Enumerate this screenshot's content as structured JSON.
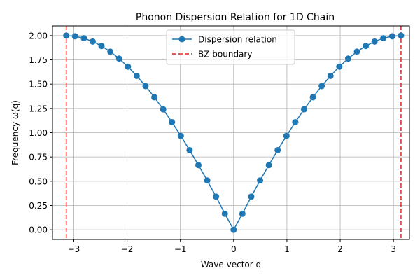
{
  "chart_data": {
    "type": "line",
    "title": "Phonon Dispersion Relation for 1D Chain",
    "xlabel": "Wave vector q",
    "ylabel": "Frequency ω(q)",
    "xlim": [
      -3.4,
      3.3
    ],
    "ylim": [
      -0.1,
      2.1
    ],
    "xticks": [
      -3,
      -2,
      -1,
      0,
      1,
      2,
      3
    ],
    "xtick_labels": [
      "−3",
      "−2",
      "−1",
      "0",
      "1",
      "2",
      "3"
    ],
    "yticks": [
      0.0,
      0.25,
      0.5,
      0.75,
      1.0,
      1.25,
      1.5,
      1.75,
      2.0
    ],
    "ytick_labels": [
      "0.00",
      "0.25",
      "0.50",
      "0.75",
      "1.00",
      "1.25",
      "1.50",
      "1.75",
      "2.00"
    ],
    "grid": true,
    "legend_position": "upper center",
    "series": [
      {
        "name": "Dispersion relation",
        "color": "#1f77b4",
        "marker": "circle",
        "linestyle": "solid",
        "x": [
          -3.1416,
          -2.9762,
          -2.8108,
          -2.6455,
          -2.4801,
          -2.3147,
          -2.1494,
          -1.984,
          -1.8186,
          -1.6533,
          -1.4879,
          -1.3225,
          -1.1572,
          -0.9918,
          -0.8264,
          -0.6611,
          -0.4957,
          -0.3303,
          -0.165,
          0.0,
          0.165,
          0.3303,
          0.4957,
          0.6611,
          0.8264,
          0.9918,
          1.1572,
          1.3225,
          1.4879,
          1.6533,
          1.8186,
          1.984,
          2.1494,
          2.3147,
          2.4801,
          2.6455,
          2.8108,
          2.9762,
          3.1416
        ],
        "y": [
          2.0,
          1.993,
          1.973,
          1.939,
          1.893,
          1.834,
          1.763,
          1.68,
          1.585,
          1.48,
          1.365,
          1.241,
          1.108,
          0.967,
          0.82,
          0.666,
          0.508,
          0.341,
          0.165,
          0.0,
          0.165,
          0.341,
          0.508,
          0.666,
          0.82,
          0.967,
          1.108,
          1.241,
          1.365,
          1.48,
          1.585,
          1.68,
          1.763,
          1.834,
          1.893,
          1.939,
          1.973,
          1.993,
          2.0
        ]
      }
    ],
    "vlines": [
      {
        "name": "BZ boundary",
        "x": -3.1416,
        "color": "#d62728",
        "linestyle": "dashed"
      },
      {
        "name": "BZ boundary",
        "x": 3.1416,
        "color": "#d62728",
        "linestyle": "dashed"
      }
    ],
    "legend": [
      {
        "label": "Dispersion relation",
        "color": "#1f77b4",
        "kind": "line-marker"
      },
      {
        "label": "BZ boundary",
        "color": "#d62728",
        "kind": "dashed-line"
      }
    ]
  }
}
